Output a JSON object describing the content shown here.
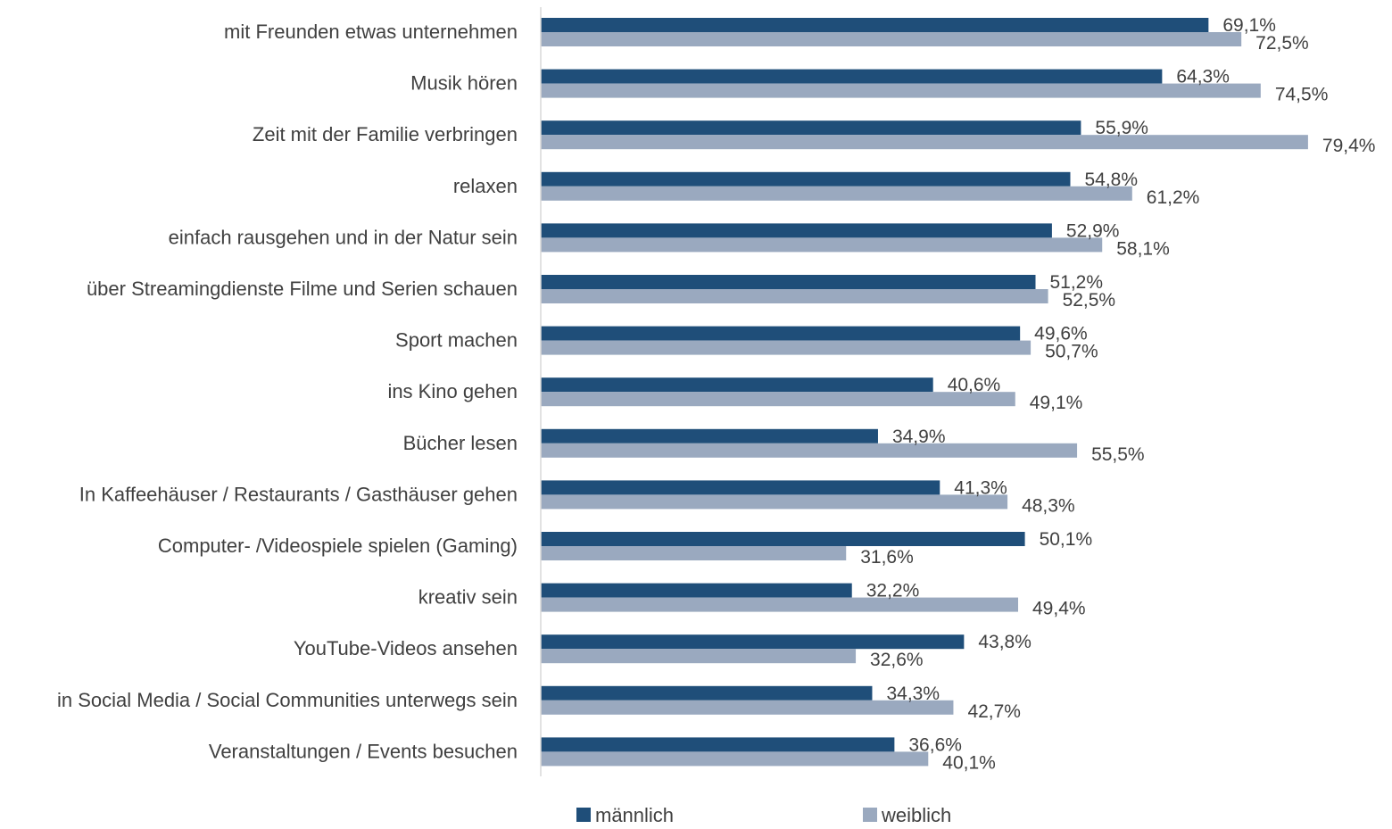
{
  "chart_data": {
    "type": "bar",
    "orientation": "horizontal",
    "title": "",
    "xlabel": "",
    "ylabel": "",
    "xlim": [
      0,
      0.8
    ],
    "grid": false,
    "legend_position": "bottom",
    "colors": {
      "männlich": "#1f4e79",
      "weiblich": "#9aa9bf"
    },
    "categories": [
      "mit Freunden etwas unternehmen",
      "Musik hören",
      "Zeit mit der Familie verbringen",
      "relaxen",
      "einfach rausgehen und in der Natur sein",
      "über Streamingdienste Filme und Serien schauen",
      "Sport machen",
      "ins Kino gehen",
      "Bücher lesen",
      "In Kaffeehäuser / Restaurants / Gasthäuser gehen",
      "Computer- /Videospiele spielen (Gaming)",
      "kreativ sein",
      "YouTube-Videos ansehen",
      "in Social Media / Social Communities unterwegs sein",
      "Veranstaltungen / Events besuchen"
    ],
    "series": [
      {
        "name": "männlich",
        "values": [
          0.691,
          0.643,
          0.559,
          0.548,
          0.529,
          0.512,
          0.496,
          0.406,
          0.349,
          0.413,
          0.501,
          0.322,
          0.438,
          0.343,
          0.366
        ],
        "labels": [
          "69,1%",
          "64,3%",
          "55,9%",
          "54,8%",
          "52,9%",
          "51,2%",
          "49,6%",
          "40,6%",
          "34,9%",
          "41,3%",
          "50,1%",
          "32,2%",
          "43,8%",
          "34,3%",
          "36,6%"
        ]
      },
      {
        "name": "weiblich",
        "values": [
          0.725,
          0.745,
          0.794,
          0.612,
          0.581,
          0.525,
          0.507,
          0.491,
          0.555,
          0.483,
          0.316,
          0.494,
          0.326,
          0.427,
          0.401
        ],
        "labels": [
          "72,5%",
          "74,5%",
          "79,4%",
          "61,2%",
          "58,1%",
          "52,5%",
          "50,7%",
          "49,1%",
          "55,5%",
          "48,3%",
          "31,6%",
          "49,4%",
          "32,6%",
          "42,7%",
          "40,1%"
        ]
      }
    ]
  }
}
